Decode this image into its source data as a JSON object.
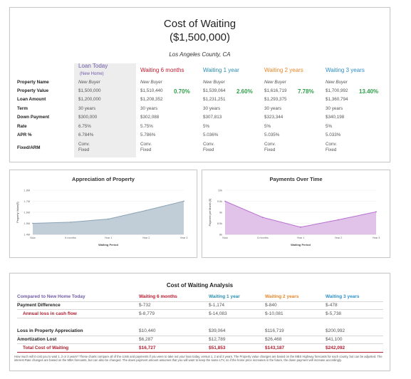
{
  "header": {
    "title": "Cost of Waiting",
    "price_line": "($1,500,000)",
    "location": "Los Angeles County, CA"
  },
  "colors": {
    "loan_today": "#6f5aa7",
    "six_months": "#c2192d",
    "one_year": "#2a8fb1",
    "two_years": "#e8862a",
    "three_years": "#2e8fc9",
    "increase_pct": "#2fa04a",
    "total_red": "#b01c2e"
  },
  "columns": [
    {
      "label": "Loan Today",
      "sub": "(New Home)"
    },
    {
      "label": "Waiting 6 months"
    },
    {
      "label": "Waiting 1 year"
    },
    {
      "label": "Waiting 2 years"
    },
    {
      "label": "Waiting 3 years"
    }
  ],
  "row_labels": [
    "Property Name",
    "Property Value",
    "Loan Amount",
    "Term",
    "Down Payment",
    "Rate",
    "APR %",
    "Fixed/ARM"
  ],
  "scenarios": [
    {
      "name": "New Buyer",
      "value": "$1,500,000",
      "loan": "$1,200,000",
      "term": "30 years",
      "down": "$300,000",
      "rate": "6.75%",
      "apr": "6.784%",
      "type1": "Conv.",
      "type2": "Fixed",
      "pct": ""
    },
    {
      "name": "New Buyer",
      "value": "$1,510,440",
      "loan": "$1,208,352",
      "term": "30 years",
      "down": "$302,088",
      "rate": "5.75%",
      "apr": "5.786%",
      "type1": "Conv.",
      "type2": "Fixed",
      "pct": "0.70%"
    },
    {
      "name": "New Buyer",
      "value": "$1,539,064",
      "loan": "$1,231,251",
      "term": "30 years",
      "down": "$307,813",
      "rate": "5%",
      "apr": "5.036%",
      "type1": "Conv.",
      "type2": "Fixed",
      "pct": "2.60%"
    },
    {
      "name": "New Buyer",
      "value": "$1,616,719",
      "loan": "$1,293,375",
      "term": "30 years",
      "down": "$323,344",
      "rate": "5%",
      "apr": "5.035%",
      "type1": "Conv.",
      "type2": "Fixed",
      "pct": "7.78%"
    },
    {
      "name": "New Buyer",
      "value": "$1,700,992",
      "loan": "$1,360,794",
      "term": "30 years",
      "down": "$340,198",
      "rate": "5%",
      "apr": "5.033%",
      "type1": "Conv.",
      "type2": "Fixed",
      "pct": "13.40%"
    }
  ],
  "chart_data": [
    {
      "type": "area",
      "title": "Appreciation of Property",
      "xlabel": "Waiting Period",
      "ylabel": "Property Value($)",
      "categories": [
        "Now",
        "6 months",
        "Year 1",
        "Year 2",
        "Year 3"
      ],
      "y_ticks": [
        "1.4M",
        "1.5M",
        "1.6M",
        "1.7M",
        "1.8M"
      ],
      "ylim": [
        1400000,
        1800000
      ],
      "values": [
        1500000,
        1510440,
        1539064,
        1616719,
        1700992
      ],
      "color": "#8aa3b5",
      "fill": "#b7c5d0"
    },
    {
      "type": "area",
      "title": "Payments Over Time",
      "xlabel": "Waiting Period",
      "ylabel": "Payment per Month ($)",
      "categories": [
        "Now",
        "6 months",
        "Year 1",
        "Year 2",
        "Year 3"
      ],
      "y_ticks": [
        "8k",
        "8.5k",
        "9k",
        "9.5k",
        "10k"
      ],
      "ylim": [
        8000,
        10000
      ],
      "values": [
        9500,
        8768,
        8326,
        8660,
        9022
      ],
      "color": "#b76fcf",
      "fill": "#dcb9e6"
    }
  ],
  "analysis": {
    "title": "Cost of Waiting Analysis",
    "compare_label": "Compared to New Home Today",
    "headers": [
      "Waiting 6 months",
      "Waiting 1 year",
      "Waiting 2 years",
      "Waiting 3 years"
    ],
    "rows": [
      {
        "label": "Payment Difference",
        "values": [
          "$-732",
          "$-1,174",
          "$-840",
          "$-478"
        ]
      },
      {
        "label": "Annual loss in cash flow",
        "values": [
          "$-8,779",
          "$-14,083",
          "$-10,081",
          "$-5,738"
        ]
      },
      {
        "label": "Loss in Property Appreciation",
        "values": [
          "$10,440",
          "$39,064",
          "$116,719",
          "$200,992"
        ]
      },
      {
        "label": "Amortization Lost",
        "values": [
          "$6,287",
          "$12,789",
          "$26,468",
          "$41,100"
        ]
      },
      {
        "label": "Total Cost of Waiting",
        "values": [
          "$16,727",
          "$51,853",
          "$143,187",
          "$242,092"
        ]
      }
    ],
    "footnote": "How much will it cost you to wait 1, 2 or 3 years? These charts compare all of the costs and payments if you were to take out your loan today, versus 1, 2 and 3 years. The Property value changes are based on the MBS Highway forecasts for each county, but can be adjusted. The interest Rate changes are based on the MBA forecasts, but can also be changed. The down payment amount assumes that you will want to keep the same LTV, so if the home price increases in the future, the down payment will increase accordingly."
  }
}
